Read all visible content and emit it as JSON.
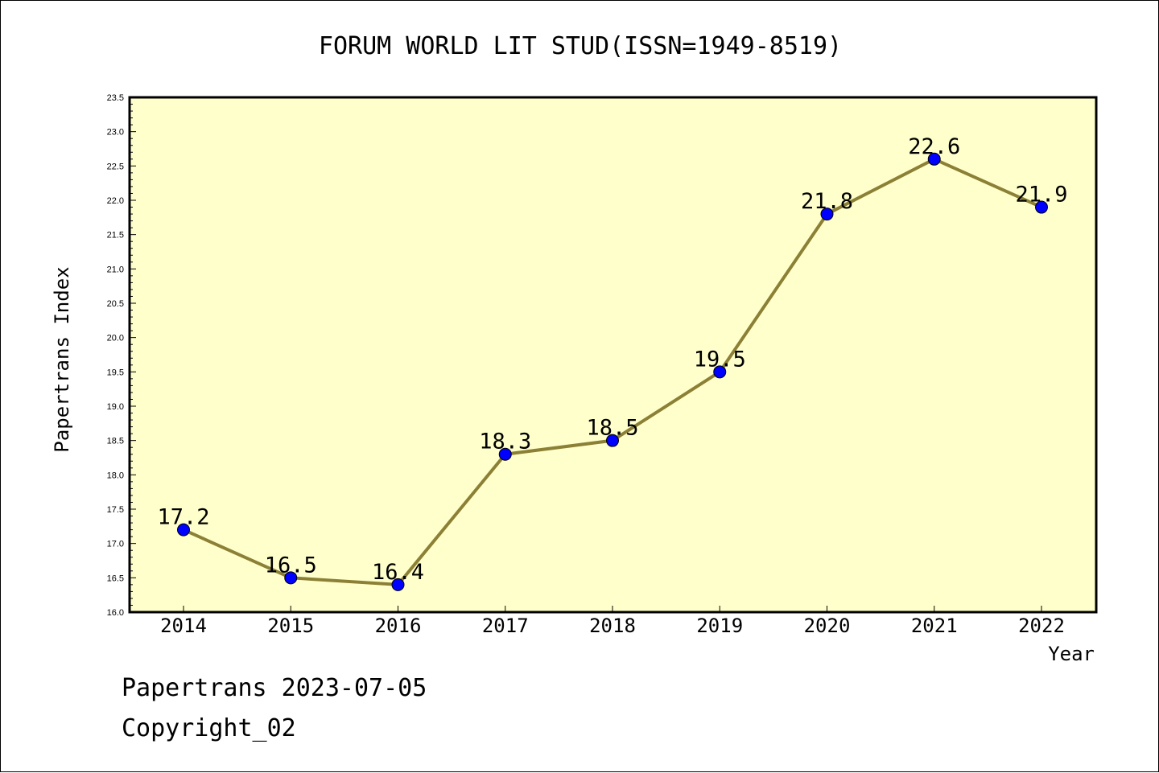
{
  "chart_data": {
    "type": "line",
    "title": "FORUM WORLD LIT STUD(ISSN=1949-8519)",
    "xlabel": "Year",
    "ylabel": "Papertrans Index",
    "categories": [
      "2014",
      "2015",
      "2016",
      "2017",
      "2018",
      "2019",
      "2020",
      "2021",
      "2022"
    ],
    "series": [
      {
        "values": [
          17.2,
          16.5,
          16.4,
          18.3,
          18.5,
          19.5,
          21.8,
          22.6,
          21.9
        ],
        "labels": [
          "17.2",
          "16.5",
          "16.4",
          "18.3",
          "18.5",
          "19.5",
          "21.8",
          "22.6",
          "21.9"
        ]
      }
    ],
    "ylim": [
      16.0,
      23.5
    ],
    "yticks": [
      "16.0",
      "16.5",
      "17.0",
      "17.5",
      "18.0",
      "18.5",
      "19.0",
      "19.5",
      "20.0",
      "20.5",
      "21.0",
      "21.5",
      "22.0",
      "22.5",
      "23.0",
      "23.5"
    ],
    "grid": false,
    "legend": "none",
    "colors": {
      "plot_background": "#ffffcc",
      "line": "#8b8035",
      "marker": "#0000ff"
    }
  },
  "footer": {
    "line1": "Papertrans 2023-07-05",
    "line2": "Copyright_02"
  }
}
